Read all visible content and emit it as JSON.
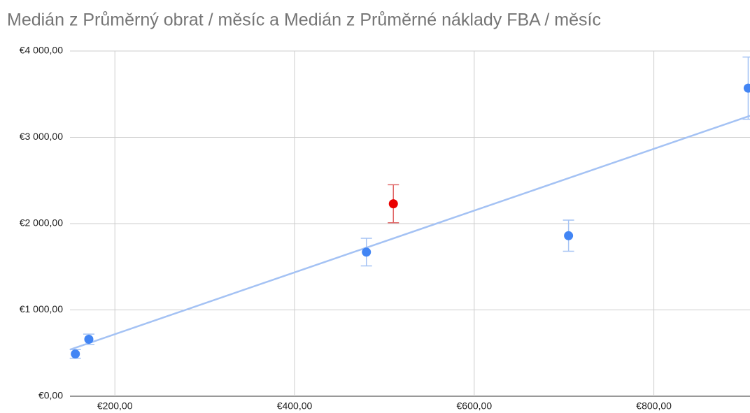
{
  "chart_data": {
    "type": "scatter",
    "title": "Medián z Průměrný obrat / měsíc a Medián z Průměrné náklady FBA / měsíc",
    "x": [
      156,
      171,
      480,
      510,
      705,
      905
    ],
    "values": [
      490,
      660,
      1670,
      2230,
      1860,
      3570
    ],
    "errors": [
      50,
      60,
      160,
      220,
      180,
      360
    ],
    "colors": [
      "#4285f4",
      "#4285f4",
      "#4285f4",
      "#ea0000",
      "#4285f4",
      "#4285f4"
    ],
    "error_colors": [
      "#a4c2f4",
      "#a4c2f4",
      "#a4c2f4",
      "#e06666",
      "#a4c2f4",
      "#a4c2f4"
    ],
    "trendline": {
      "x": [
        150,
        907
      ],
      "values": [
        540,
        3250
      ],
      "color": "#a4c2f4"
    },
    "xlim": [
      150,
      907
    ],
    "ylim": [
      0,
      4000
    ],
    "xticks": [
      {
        "value": 200,
        "label": "€200,00"
      },
      {
        "value": 400,
        "label": "€400,00"
      },
      {
        "value": 600,
        "label": "€600,00"
      },
      {
        "value": 800,
        "label": "€800,00"
      }
    ],
    "yticks": [
      {
        "value": 0,
        "label": "€0,00"
      },
      {
        "value": 1000,
        "label": "€1 000,00"
      },
      {
        "value": 2000,
        "label": "€2 000,00"
      },
      {
        "value": 3000,
        "label": "€3 000,00"
      },
      {
        "value": 4000,
        "label": "€4 000,00"
      }
    ],
    "grid": true
  }
}
